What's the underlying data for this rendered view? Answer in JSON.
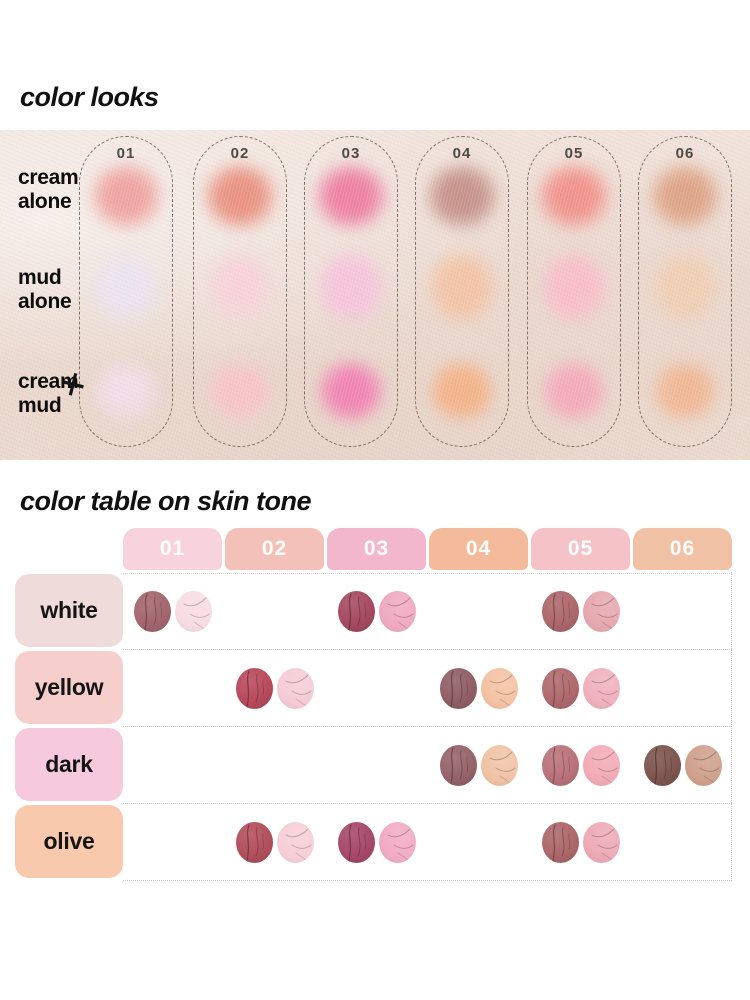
{
  "color_looks": {
    "title": "color looks",
    "row_labels": [
      {
        "id": "cream-alone",
        "lines": [
          "cream",
          "alone"
        ]
      },
      {
        "id": "mud-alone",
        "lines": [
          "mud",
          "alone"
        ]
      },
      {
        "id": "cream-plus-mud",
        "lines": [
          "cream",
          "mud"
        ],
        "plus_icon": "+"
      }
    ],
    "columns": [
      {
        "number": "01",
        "cream": "#efa19e",
        "mud": "#ebe3f0",
        "cream_mud": "#f3dce9"
      },
      {
        "number": "02",
        "cream": "#e98e7d",
        "mud": "#f7d2d9",
        "cream_mud": "#f8c3c5"
      },
      {
        "number": "03",
        "cream": "#ed7ba0",
        "mud": "#f6c3dc",
        "cream_mud": "#f27fb2"
      },
      {
        "number": "04",
        "cream": "#c48f88",
        "mud": "#f3c3a5",
        "cream_mud": "#f4b186"
      },
      {
        "number": "05",
        "cream": "#f18f88",
        "mud": "#f9bdc8",
        "cream_mud": "#f5a8ba"
      },
      {
        "number": "06",
        "cream": "#dda284",
        "mud": "#f0ceb3",
        "cream_mud": "#f1b693"
      }
    ]
  },
  "color_table": {
    "title": "color table on skin tone",
    "column_headers": [
      {
        "label": "01",
        "color": "#f8d3de"
      },
      {
        "label": "02",
        "color": "#f3c1b8"
      },
      {
        "label": "03",
        "color": "#f2b7cd"
      },
      {
        "label": "04",
        "color": "#f3bb9b"
      },
      {
        "label": "05",
        "color": "#f5c2c8"
      },
      {
        "label": "06",
        "color": "#f0c1a5"
      }
    ],
    "rows": [
      {
        "label": "white",
        "label_color": "#f0dbdb",
        "cells": {
          "01": {
            "cream": "#a4676f",
            "mud": "#f7dde3"
          },
          "03": {
            "cream": "#a54a61",
            "mud": "#efa9c0"
          },
          "05": {
            "cream": "#ae686c",
            "mud": "#e6a8af"
          }
        }
      },
      {
        "label": "yellow",
        "label_color": "#f6cecc",
        "cells": {
          "02": {
            "cream": "#b84a5d",
            "mud": "#f5ccd6"
          },
          "04": {
            "cream": "#916067",
            "mud": "#f4c2a3"
          },
          "05": {
            "cream": "#b06a6e",
            "mud": "#efb1bd"
          }
        }
      },
      {
        "label": "dark",
        "label_color": "#f7c9dd",
        "cells": {
          "04": {
            "cream": "#96646a",
            "mud": "#f0c3a6"
          },
          "05": {
            "cream": "#bb737a",
            "mud": "#f2abb6"
          },
          "06": {
            "cream": "#7e5650",
            "mud": "#cfa08c"
          }
        }
      },
      {
        "label": "olive",
        "label_color": "#f8c9ad",
        "cells": {
          "02": {
            "cream": "#b34f5d",
            "mud": "#f6cfd7"
          },
          "03": {
            "cream": "#a8496b",
            "mud": "#f2abc4"
          },
          "05": {
            "cream": "#ad686b",
            "mud": "#edaab6"
          }
        }
      }
    ]
  }
}
